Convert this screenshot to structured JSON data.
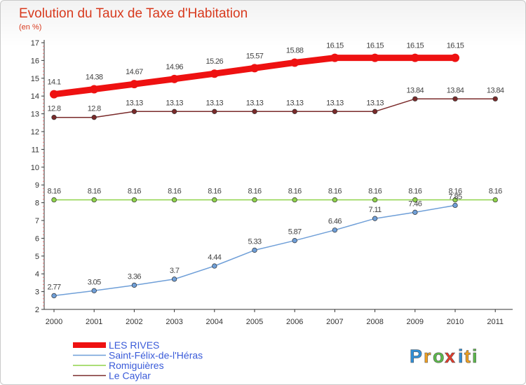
{
  "chart_data": {
    "type": "line",
    "title": "Evolution du Taux de Taxe d'Habitation",
    "subtitle": "(en %)",
    "xlabel": "",
    "ylabel": "",
    "ylim": [
      2,
      17
    ],
    "yticks": [
      "2",
      "3",
      "4",
      "5",
      "6",
      "7",
      "8",
      "9",
      "10",
      "11",
      "12",
      "13",
      "14",
      "15",
      "16",
      "17"
    ],
    "categories": [
      "2000",
      "2001",
      "2002",
      "2003",
      "2004",
      "2005",
      "2006",
      "2007",
      "2008",
      "2009",
      "2010",
      "2011"
    ],
    "grid": false,
    "legend_position": "bottom-left",
    "series": [
      {
        "name": "LES RIVES",
        "color": "#ee1111",
        "values": [
          14.1,
          14.38,
          14.67,
          14.96,
          15.26,
          15.57,
          15.88,
          16.15,
          16.15,
          16.15,
          16.15,
          null
        ],
        "labels": [
          "14.1",
          "14.38",
          "14.67",
          "14.96",
          "15.26",
          "15.57",
          "15.88",
          "16.15",
          "16.15",
          "16.15",
          "16.15",
          ""
        ]
      },
      {
        "name": "Saint-Félix-de-l'Héras",
        "color": "#6f9fd8",
        "values": [
          2.77,
          3.05,
          3.36,
          3.7,
          4.44,
          5.33,
          5.87,
          6.46,
          7.11,
          7.46,
          7.85,
          null
        ],
        "labels": [
          "2.77",
          "3.05",
          "3.36",
          "3.7",
          "4.44",
          "5.33",
          "5.87",
          "6.46",
          "7.11",
          "7.46",
          "7.85",
          ""
        ]
      },
      {
        "name": "Romiguières",
        "color": "#8fd44a",
        "values": [
          8.16,
          8.16,
          8.16,
          8.16,
          8.16,
          8.16,
          8.16,
          8.16,
          8.16,
          8.16,
          8.16,
          8.16
        ],
        "labels": [
          "8.16",
          "8.16",
          "8.16",
          "8.16",
          "8.16",
          "8.16",
          "8.16",
          "8.16",
          "8.16",
          "8.16",
          "8.16",
          "8.16"
        ]
      },
      {
        "name": "Le Caylar",
        "color": "#7a2a2a",
        "values": [
          12.8,
          12.8,
          13.13,
          13.13,
          13.13,
          13.13,
          13.13,
          13.13,
          13.13,
          13.84,
          13.84,
          13.84
        ],
        "labels": [
          "12.8",
          "12.8",
          "13.13",
          "13.13",
          "13.13",
          "13.13",
          "13.13",
          "13.13",
          "13.13",
          "13.84",
          "13.84",
          "13.84"
        ]
      }
    ]
  },
  "logo": {
    "letters": [
      "P",
      "r",
      "o",
      "x",
      "i",
      "t",
      "i"
    ],
    "colors": [
      "#2f8fd8",
      "#f0a020",
      "#5bb94a",
      "#e53a2a",
      "#2f8fd8",
      "#f0a020",
      "#5bb94a"
    ]
  }
}
